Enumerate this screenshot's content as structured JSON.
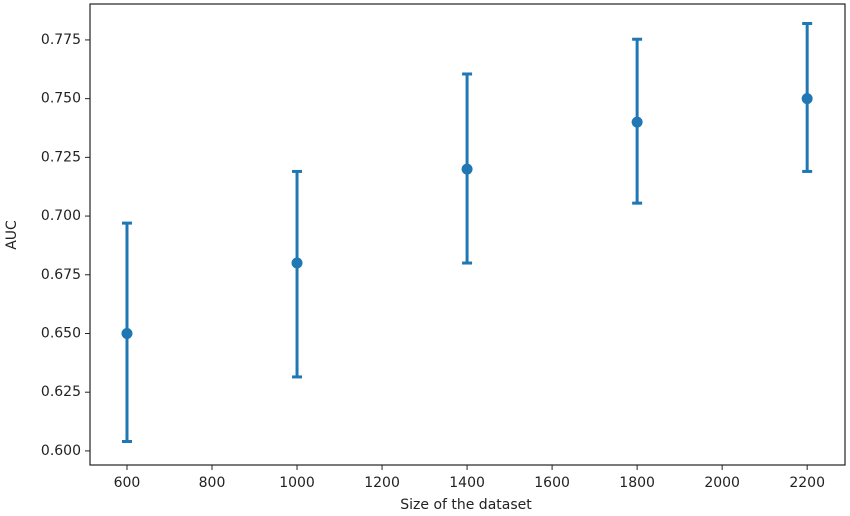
{
  "chart_data": {
    "type": "errorbar",
    "xlabel": "Size of the dataset",
    "ylabel": "AUC",
    "x": [
      600,
      1000,
      1400,
      1800,
      2200
    ],
    "values": [
      0.65,
      0.68,
      0.72,
      0.74,
      0.75
    ],
    "err_minus": [
      0.046,
      0.0485,
      0.04,
      0.0345,
      0.031
    ],
    "err_plus": [
      0.047,
      0.039,
      0.0405,
      0.0353,
      0.032
    ],
    "color": "#1f77b4",
    "xlim": [
      513,
      2289
    ],
    "xticks": [
      600,
      800,
      1000,
      1200,
      1400,
      1600,
      1800,
      2000,
      2200
    ],
    "ylim": [
      0.594,
      0.7903
    ],
    "yticks": [
      {
        "value": 0.6,
        "label": "0.600"
      },
      {
        "value": 0.625,
        "label": "0.625"
      },
      {
        "value": 0.65,
        "label": "0.650"
      },
      {
        "value": 0.675,
        "label": "0.675"
      },
      {
        "value": 0.7,
        "label": "0.700"
      },
      {
        "value": 0.725,
        "label": "0.725"
      },
      {
        "value": 0.75,
        "label": "0.750"
      },
      {
        "value": 0.775,
        "label": "0.775"
      }
    ],
    "grid": false
  }
}
